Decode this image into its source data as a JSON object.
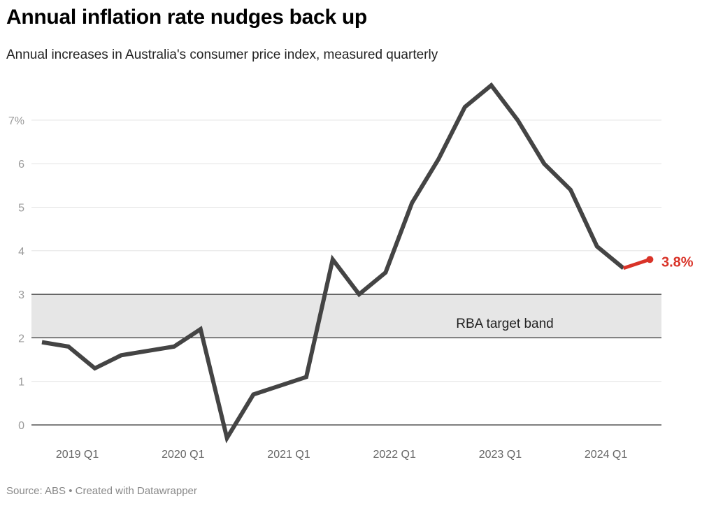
{
  "chart_data": {
    "type": "line",
    "title": "Annual inflation rate nudges back up",
    "subtitle": "Annual increases in Australia's consumer price index, measured quarterly",
    "source": "Source: ABS • Created with Datawrapper",
    "x": [
      "2018 Q3",
      "2018 Q4",
      "2019 Q1",
      "2019 Q2",
      "2019 Q3",
      "2019 Q4",
      "2020 Q1",
      "2020 Q2",
      "2020 Q3",
      "2020 Q4",
      "2021 Q1",
      "2021 Q2",
      "2021 Q3",
      "2021 Q4",
      "2022 Q1",
      "2022 Q2",
      "2022 Q3",
      "2022 Q4",
      "2023 Q1",
      "2023 Q2",
      "2023 Q3",
      "2023 Q4",
      "2024 Q1",
      "2024 Q2"
    ],
    "values": [
      1.9,
      1.8,
      1.3,
      1.6,
      1.7,
      1.8,
      2.2,
      -0.3,
      0.7,
      0.9,
      1.1,
      3.8,
      3.0,
      3.5,
      5.1,
      6.1,
      7.3,
      7.8,
      7.0,
      6.0,
      5.4,
      4.1,
      3.6,
      3.8
    ],
    "x_tick_labels": [
      "2019 Q1",
      "2020 Q1",
      "2021 Q1",
      "2022 Q1",
      "2023 Q1",
      "2024 Q1"
    ],
    "y_tick_labels": [
      "0",
      "1",
      "2",
      "3",
      "4",
      "5",
      "6",
      "7%"
    ],
    "ylim": [
      -0.4,
      7.9
    ],
    "grid": true,
    "band": {
      "from": 2,
      "to": 3,
      "label": "RBA target band",
      "color": "#e6e6e6"
    },
    "last_value_label": "3.8%",
    "colors": {
      "line": "#444444",
      "highlight": "#d93328"
    }
  }
}
